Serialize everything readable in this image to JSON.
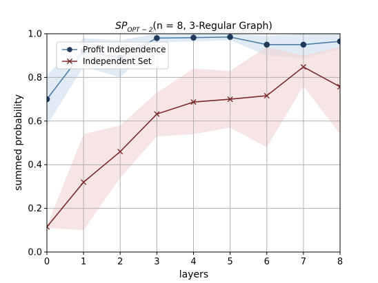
{
  "chart_data": {
    "type": "line",
    "title_main": "SP",
    "title_sub": "OPT − 2",
    "title_rest": "(n = 8, 3-Regular Graph)",
    "xlabel": "layers",
    "ylabel": "summed probability",
    "x": [
      0,
      1,
      2,
      3,
      4,
      5,
      6,
      7,
      8
    ],
    "xlim": [
      0,
      8
    ],
    "ylim": [
      0.0,
      1.0
    ],
    "xticks": [
      "0",
      "1",
      "2",
      "3",
      "4",
      "5",
      "6",
      "7",
      "8"
    ],
    "yticks": [
      "0.0",
      "0.2",
      "0.4",
      "0.6",
      "0.8",
      "1.0"
    ],
    "grid": true,
    "legend_position": "upper-left",
    "series": [
      {
        "name": "Profit Independence",
        "color": "#4f7da8",
        "marker_color": "#1f3a5a",
        "band_color": "#cfe0f0",
        "marker": "circle",
        "values": [
          0.7,
          0.92,
          0.89,
          0.98,
          0.982,
          0.985,
          0.95,
          0.95,
          0.965
        ],
        "lower": [
          0.58,
          0.85,
          0.8,
          0.96,
          0.965,
          0.97,
          0.9,
          0.89,
          0.93
        ],
        "upper": [
          0.81,
          0.98,
          0.97,
          1.0,
          1.0,
          1.0,
          0.99,
          1.0,
          1.0
        ]
      },
      {
        "name": "Independent Set",
        "color": "#7a2a2a",
        "marker_color": "#7a2a2a",
        "band_color": "#f2d5d5",
        "marker": "x",
        "values": [
          0.115,
          0.32,
          0.46,
          0.632,
          0.687,
          0.7,
          0.716,
          0.848,
          0.757
        ],
        "lower": [
          0.11,
          0.1,
          0.34,
          0.53,
          0.54,
          0.57,
          0.48,
          0.76,
          0.54
        ],
        "upper": [
          0.12,
          0.54,
          0.58,
          0.73,
          0.84,
          0.83,
          0.94,
          0.9,
          0.94
        ]
      }
    ]
  }
}
